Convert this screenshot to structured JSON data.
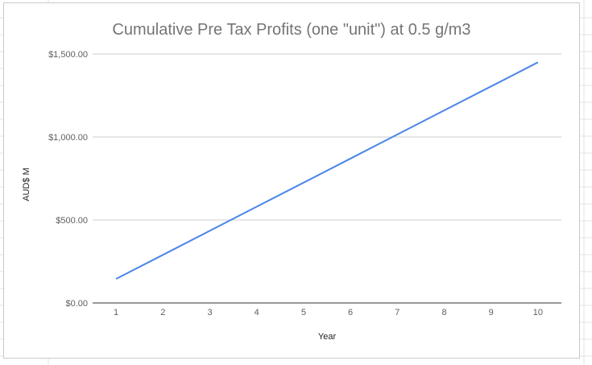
{
  "chart_data": {
    "type": "line",
    "title": "Cumulative Pre Tax Profits (one \"unit\") at 0.5 g/m3",
    "xlabel": "Year",
    "ylabel": "AUD$ M",
    "x": [
      1,
      2,
      3,
      4,
      5,
      6,
      7,
      8,
      9,
      10
    ],
    "x_tick_labels": [
      "1",
      "2",
      "3",
      "4",
      "5",
      "6",
      "7",
      "8",
      "9",
      "10"
    ],
    "y_tick_labels": [
      "$0.00",
      "$500.00",
      "$1,000.00",
      "$1,500.00"
    ],
    "y_ticks": [
      0,
      500,
      1000,
      1500
    ],
    "ylim": [
      0,
      1500
    ],
    "series": [
      {
        "values": [
          145,
          290,
          435,
          580,
          725,
          870,
          1015,
          1160,
          1305,
          1450
        ],
        "color": "#4a86e8"
      }
    ],
    "grid": true,
    "legend": "none",
    "colors": {
      "grid": "#cccccc",
      "axis": "#333333",
      "title": "#757575"
    }
  }
}
